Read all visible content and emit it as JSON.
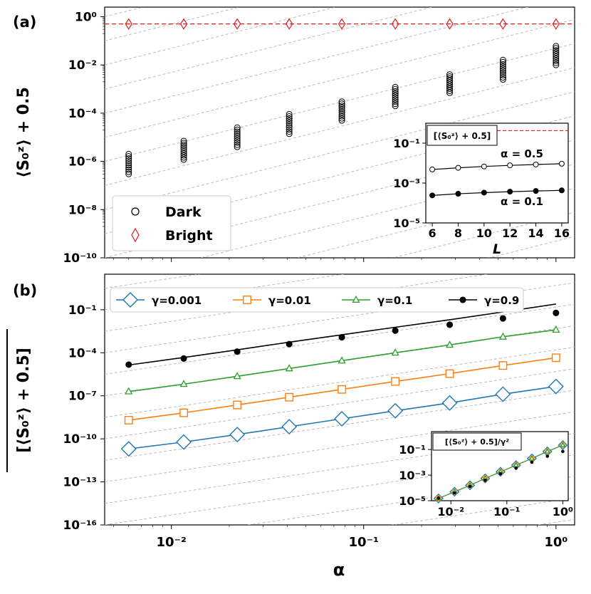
{
  "chart_data": [
    {
      "panel": "(a)",
      "type": "scatter",
      "scale": "log-log",
      "xlabel": "",
      "ylabel": "⟨S₀ᶻ⟩ + 0.5",
      "xlim": [
        0.0045,
        1.25
      ],
      "ylim": [
        1e-10,
        2.5
      ],
      "alpha_values": [
        0.006,
        0.0116,
        0.022,
        0.041,
        0.077,
        0.146,
        0.28,
        0.53,
        1.0
      ],
      "legend": [
        "Dark",
        "Bright"
      ],
      "legend_position": "lower-left",
      "series": [
        {
          "name": "Dark",
          "marker": "open-circle",
          "color": "#000000",
          "lower": [
            3e-07,
            1.2e-06,
            4e-06,
            1.4e-05,
            5e-05,
            0.0002,
            0.0007,
            0.0025,
            0.01
          ],
          "upper": [
            2e-06,
            7e-06,
            2.5e-05,
            9e-05,
            0.0003,
            0.0012,
            0.004,
            0.016,
            0.06
          ]
        },
        {
          "name": "Bright",
          "marker": "open-diamond",
          "color": "#e41a1c",
          "values": [
            0.5,
            0.5,
            0.5,
            0.5,
            0.5,
            0.5,
            0.5,
            0.5,
            0.5
          ]
        }
      ],
      "reference_line": {
        "y": 0.5,
        "style": "dashed",
        "color": "#e41a1c"
      },
      "guide_lines": {
        "slope": 2,
        "style": "dashed",
        "color": "#bbbbbb"
      },
      "yticks": [
        "10⁰",
        "10⁻²",
        "10⁻⁴",
        "10⁻⁶",
        "10⁻⁸",
        "10⁻¹⁰"
      ],
      "inset": {
        "label": "[⟨S₀ᶻ⟩ + 0.5]",
        "xlabel": "L",
        "xticks": [
          "6",
          "8",
          "10",
          "12",
          "14",
          "16"
        ],
        "yticks": [
          "10⁻¹",
          "10⁻³",
          "10⁻⁵"
        ],
        "xlim": [
          5.5,
          16.5
        ],
        "ylim": [
          1e-05,
          1.0
        ],
        "reference_line": {
          "y": 0.5,
          "color": "#e41a1c"
        },
        "series": [
          {
            "name": "α = 0.5",
            "marker": "open-circle",
            "x": [
              6,
              8,
              10,
              12,
              14,
              16
            ],
            "y": [
              0.0048,
              0.0058,
              0.0068,
              0.0077,
              0.0085,
              0.0093
            ]
          },
          {
            "name": "α = 0.1",
            "marker": "filled-circle",
            "x": [
              6,
              8,
              10,
              12,
              14,
              16
            ],
            "y": [
              0.00024,
              0.00029,
              0.00033,
              0.00037,
              0.0004,
              0.00043
            ]
          }
        ]
      }
    },
    {
      "panel": "(b)",
      "type": "line",
      "scale": "log-log",
      "xlabel": "α",
      "ylabel": "[⟨S₀ᶻ⟩ + 0.5]",
      "xlim": [
        0.0045,
        1.25
      ],
      "ylim": [
        1e-16,
        30
      ],
      "x": [
        0.006,
        0.0116,
        0.022,
        0.041,
        0.077,
        0.146,
        0.28,
        0.53,
        1.0
      ],
      "xticks": [
        "10⁻²",
        "10⁻¹",
        "10⁰"
      ],
      "yticks": [
        "10⁻¹",
        "10⁻⁴",
        "10⁻⁷",
        "10⁻¹⁰",
        "10⁻¹³",
        "10⁻¹⁶"
      ],
      "legend_position": "top",
      "series": [
        {
          "name": "γ=0.001",
          "color": "#1f77b4",
          "marker": "open-diamond",
          "values": [
            2e-11,
            6e-11,
            2e-10,
            7e-10,
            2.5e-09,
            9e-09,
            3.2e-08,
            1.3e-07,
            4.5e-07
          ]
        },
        {
          "name": "γ=0.01",
          "color": "#ff7f0e",
          "marker": "open-square",
          "values": [
            2e-09,
            6.5e-09,
            2.3e-08,
            8e-08,
            2.8e-07,
            1e-06,
            3.5e-06,
            1.3e-05,
            4.5e-05
          ]
        },
        {
          "name": "γ=0.1",
          "color": "#2ca02c",
          "marker": "open-triangle",
          "values": [
            2e-07,
            6.5e-07,
            2.3e-06,
            8e-06,
            2.8e-05,
            0.0001,
            0.00035,
            0.0013,
            0.004
          ]
        },
        {
          "name": "γ=0.9",
          "color": "#000000",
          "marker": "filled-circle",
          "values": [
            1.5e-05,
            4e-05,
            0.00012,
            0.0004,
            0.0012,
            0.0035,
            0.009,
            0.025,
            0.06
          ],
          "fit": [
            1.4e-05,
            4.7e-05,
            0.00016,
            0.00055,
            0.0018,
            0.006,
            0.02,
            0.07,
            0.25
          ]
        }
      ],
      "guide_lines": {
        "slope": 2,
        "style": "dashed",
        "color": "#bbbbbb"
      },
      "inset": {
        "label": "[⟨S₀ᶻ⟩ + 0.5]/γ²",
        "xticks": [
          "10⁻²",
          "10⁻¹",
          "10⁰"
        ],
        "yticks": [
          "10⁻¹",
          "10⁻³",
          "10⁻⁵"
        ],
        "xlim": [
          0.0045,
          1.25
        ],
        "ylim": [
          1e-05,
          2.5
        ],
        "collapsed_values": [
          1.5e-05,
          5e-05,
          0.00016,
          0.00055,
          0.0018,
          0.006,
          0.02,
          0.07,
          0.22
        ],
        "black_values": [
          1.6e-05,
          4e-05,
          0.00013,
          0.0004,
          0.0013,
          0.0035,
          0.01,
          0.03,
          0.07
        ]
      }
    }
  ]
}
